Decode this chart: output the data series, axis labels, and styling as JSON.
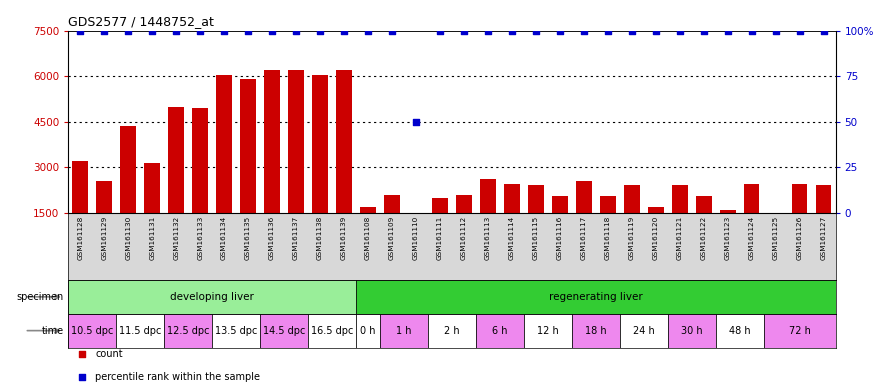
{
  "title": "GDS2577 / 1448752_at",
  "samples": [
    "GSM161128",
    "GSM161129",
    "GSM161130",
    "GSM161131",
    "GSM161132",
    "GSM161133",
    "GSM161134",
    "GSM161135",
    "GSM161136",
    "GSM161137",
    "GSM161138",
    "GSM161139",
    "GSM161108",
    "GSM161109",
    "GSM161110",
    "GSM161111",
    "GSM161112",
    "GSM161113",
    "GSM161114",
    "GSM161115",
    "GSM161116",
    "GSM161117",
    "GSM161118",
    "GSM161119",
    "GSM161120",
    "GSM161121",
    "GSM161122",
    "GSM161123",
    "GSM161124",
    "GSM161125",
    "GSM161126",
    "GSM161127"
  ],
  "counts": [
    3200,
    2550,
    4350,
    3150,
    5000,
    4950,
    6050,
    5900,
    6200,
    6200,
    6050,
    6200,
    1700,
    2100,
    1500,
    2000,
    2100,
    2600,
    2450,
    2400,
    2050,
    2550,
    2050,
    2400,
    1700,
    2400,
    2050,
    1600,
    2450,
    1500,
    2450,
    2400
  ],
  "percentile": [
    100,
    100,
    100,
    100,
    100,
    100,
    100,
    100,
    100,
    100,
    100,
    100,
    100,
    100,
    50,
    100,
    100,
    100,
    100,
    100,
    100,
    100,
    100,
    100,
    100,
    100,
    100,
    100,
    100,
    100,
    100,
    100
  ],
  "ylim_left": [
    1500,
    7500
  ],
  "ylim_right": [
    0,
    100
  ],
  "yticks_left": [
    1500,
    3000,
    4500,
    6000,
    7500
  ],
  "yticks_right": [
    0,
    25,
    50,
    75,
    100
  ],
  "bar_color": "#cc0000",
  "dot_color": "#0000cc",
  "bg_color": "#ffffff",
  "xtick_bg_color": "#d8d8d8",
  "specimen_groups": [
    {
      "label": "developing liver",
      "start": 0,
      "end": 12,
      "color": "#99ee99"
    },
    {
      "label": "regenerating liver",
      "start": 12,
      "end": 32,
      "color": "#33cc33"
    }
  ],
  "time_groups": [
    {
      "label": "10.5 dpc",
      "start": 0,
      "end": 2,
      "color": "#ee88ee"
    },
    {
      "label": "11.5 dpc",
      "start": 2,
      "end": 4,
      "color": "#ffffff"
    },
    {
      "label": "12.5 dpc",
      "start": 4,
      "end": 6,
      "color": "#ee88ee"
    },
    {
      "label": "13.5 dpc",
      "start": 6,
      "end": 8,
      "color": "#ffffff"
    },
    {
      "label": "14.5 dpc",
      "start": 8,
      "end": 10,
      "color": "#ee88ee"
    },
    {
      "label": "16.5 dpc",
      "start": 10,
      "end": 12,
      "color": "#ffffff"
    },
    {
      "label": "0 h",
      "start": 12,
      "end": 13,
      "color": "#ffffff"
    },
    {
      "label": "1 h",
      "start": 13,
      "end": 15,
      "color": "#ee88ee"
    },
    {
      "label": "2 h",
      "start": 15,
      "end": 17,
      "color": "#ffffff"
    },
    {
      "label": "6 h",
      "start": 17,
      "end": 19,
      "color": "#ee88ee"
    },
    {
      "label": "12 h",
      "start": 19,
      "end": 21,
      "color": "#ffffff"
    },
    {
      "label": "18 h",
      "start": 21,
      "end": 23,
      "color": "#ee88ee"
    },
    {
      "label": "24 h",
      "start": 23,
      "end": 25,
      "color": "#ffffff"
    },
    {
      "label": "30 h",
      "start": 25,
      "end": 27,
      "color": "#ee88ee"
    },
    {
      "label": "48 h",
      "start": 27,
      "end": 29,
      "color": "#ffffff"
    },
    {
      "label": "72 h",
      "start": 29,
      "end": 32,
      "color": "#ee88ee"
    }
  ],
  "legend_items": [
    {
      "color": "#cc0000",
      "label": "count"
    },
    {
      "color": "#0000cc",
      "label": "percentile rank within the sample"
    }
  ],
  "specimen_label": "specimen",
  "time_label": "time",
  "arrow_color": "#888888"
}
